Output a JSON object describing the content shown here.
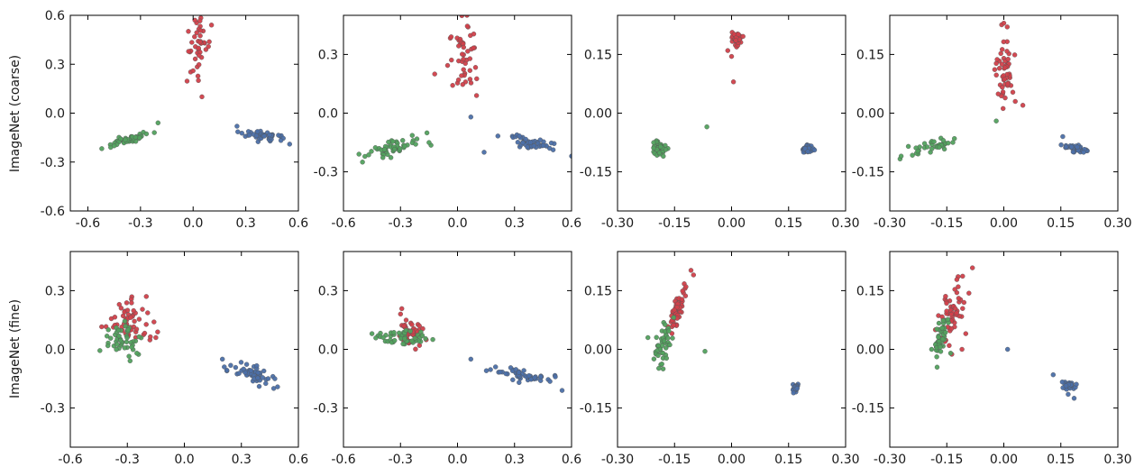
{
  "row_labels": [
    "ImageNet (coarse)",
    "ImageNet (fine)"
  ],
  "colors": {
    "red": "#d1404a",
    "green": "#52a15e",
    "blue": "#4b6fa8"
  },
  "chart_data": [
    {
      "type": "scatter",
      "row": 0,
      "col": 0,
      "xlim": [
        -0.7,
        0.6
      ],
      "ylim": [
        -0.6,
        0.6
      ],
      "xticks": [
        "-0.6",
        "-0.3",
        "0.0",
        "0.3",
        "0.6"
      ],
      "yticks": [
        "-0.6",
        "-0.3",
        "0.0",
        "0.3",
        "0.6"
      ],
      "clusters": [
        {
          "color": "red",
          "cx": 0.03,
          "cy": 0.44,
          "sx": 0.035,
          "sy": 0.09,
          "n": 40,
          "extra": [
            [
              0.0,
              0.26
            ],
            [
              0.03,
              0.2
            ],
            [
              0.05,
              0.1
            ],
            [
              0.01,
              0.57
            ]
          ]
        },
        {
          "color": "green",
          "cx": -0.36,
          "cy": -0.16,
          "sx": 0.05,
          "sy": 0.018,
          "rho": 0.75,
          "n": 45,
          "extra": [
            [
              -0.47,
              -0.21
            ],
            [
              -0.2,
              -0.06
            ],
            [
              -0.45,
              -0.2
            ]
          ]
        },
        {
          "color": "blue",
          "cx": 0.42,
          "cy": -0.14,
          "sx": 0.06,
          "sy": 0.015,
          "rho": -0.4,
          "n": 45,
          "extra": [
            [
              0.25,
              -0.08
            ],
            [
              0.55,
              -0.19
            ]
          ]
        }
      ]
    },
    {
      "type": "scatter",
      "row": 0,
      "col": 1,
      "xlim": [
        -0.6,
        0.6
      ],
      "ylim": [
        -0.5,
        0.5
      ],
      "xticks": [
        "-0.6",
        "-0.3",
        "0.0",
        "0.3",
        "0.6"
      ],
      "yticks": [
        "-0.3",
        "0.0",
        "0.3"
      ],
      "clusters": [
        {
          "color": "red",
          "cx": 0.03,
          "cy": 0.3,
          "sx": 0.04,
          "sy": 0.09,
          "n": 45,
          "extra": [
            [
              -0.12,
              0.2
            ],
            [
              0.1,
              0.09
            ],
            [
              0.05,
              0.5
            ]
          ]
        },
        {
          "color": "green",
          "cx": -0.34,
          "cy": -0.18,
          "sx": 0.07,
          "sy": 0.03,
          "rho": 0.7,
          "n": 50,
          "extra": [
            [
              -0.5,
              -0.25
            ],
            [
              -0.15,
              -0.15
            ]
          ]
        },
        {
          "color": "blue",
          "cx": 0.38,
          "cy": -0.15,
          "sx": 0.07,
          "sy": 0.02,
          "rho": -0.4,
          "n": 45,
          "extra": [
            [
              0.14,
              -0.2
            ],
            [
              0.07,
              -0.02
            ],
            [
              0.6,
              -0.22
            ]
          ]
        }
      ]
    },
    {
      "type": "scatter",
      "row": 0,
      "col": 2,
      "xlim": [
        -0.3,
        0.3
      ],
      "ylim": [
        -0.25,
        0.25
      ],
      "xticks": [
        "-0.30",
        "-0.15",
        "0.00",
        "0.15",
        "0.30"
      ],
      "yticks": [
        "-0.15",
        "0.00",
        "0.15"
      ],
      "clusters": [
        {
          "color": "red",
          "cx": 0.012,
          "cy": 0.19,
          "sx": 0.006,
          "sy": 0.008,
          "n": 35,
          "extra": [
            [
              -0.01,
              0.16
            ],
            [
              0.005,
              0.08
            ],
            [
              0.0,
              0.145
            ]
          ]
        },
        {
          "color": "green",
          "cx": -0.19,
          "cy": -0.09,
          "sx": 0.01,
          "sy": 0.008,
          "n": 40,
          "extra": [
            [
              -0.065,
              -0.035
            ],
            [
              -0.205,
              -0.075
            ]
          ]
        },
        {
          "color": "blue",
          "cx": 0.2,
          "cy": -0.09,
          "sx": 0.008,
          "sy": 0.006,
          "n": 40,
          "extra": []
        }
      ]
    },
    {
      "type": "scatter",
      "row": 0,
      "col": 3,
      "xlim": [
        -0.3,
        0.3
      ],
      "ylim": [
        -0.25,
        0.25
      ],
      "xticks": [
        "-0.30",
        "-0.15",
        "0.00",
        "0.15",
        "0.30"
      ],
      "yticks": [
        "-0.15",
        "0.00",
        "0.15"
      ],
      "clusters": [
        {
          "color": "red",
          "cx": 0.005,
          "cy": 0.12,
          "sx": 0.012,
          "sy": 0.05,
          "n": 50,
          "extra": [
            [
              0.05,
              0.02
            ],
            [
              0.03,
              0.03
            ],
            [
              0.0,
              0.23
            ]
          ]
        },
        {
          "color": "green",
          "cx": -0.19,
          "cy": -0.085,
          "sx": 0.025,
          "sy": 0.01,
          "rho": 0.6,
          "n": 35,
          "extra": [
            [
              -0.27,
              -0.11
            ],
            [
              -0.13,
              -0.065
            ],
            [
              -0.02,
              -0.02
            ]
          ]
        },
        {
          "color": "blue",
          "cx": 0.19,
          "cy": -0.09,
          "sx": 0.015,
          "sy": 0.005,
          "rho": -0.5,
          "n": 35,
          "extra": [
            [
              0.155,
              -0.06
            ],
            [
              0.21,
              -0.1
            ]
          ]
        }
      ]
    },
    {
      "type": "scatter",
      "row": 1,
      "col": 0,
      "xlim": [
        -0.6,
        0.6
      ],
      "ylim": [
        -0.5,
        0.5
      ],
      "xticks": [
        "-0.6",
        "-0.3",
        "0.0",
        "0.3",
        "0.6"
      ],
      "yticks": [
        "-0.3",
        "0.0",
        "0.3"
      ],
      "clusters": [
        {
          "color": "red",
          "cx": -0.28,
          "cy": 0.14,
          "sx": 0.06,
          "sy": 0.05,
          "n": 55,
          "extra": [
            [
              -0.2,
              0.27
            ],
            [
              -0.15,
              0.06
            ]
          ]
        },
        {
          "color": "green",
          "cx": -0.32,
          "cy": 0.05,
          "sx": 0.05,
          "sy": 0.04,
          "n": 45,
          "extra": [
            [
              -0.4,
              0.1
            ],
            [
              -0.25,
              -0.02
            ]
          ]
        },
        {
          "color": "blue",
          "cx": 0.37,
          "cy": -0.13,
          "sx": 0.05,
          "sy": 0.025,
          "rho": -0.6,
          "n": 55,
          "extra": [
            [
              0.2,
              -0.05
            ],
            [
              0.21,
              -0.09
            ],
            [
              0.47,
              -0.2
            ]
          ]
        }
      ]
    },
    {
      "type": "scatter",
      "row": 1,
      "col": 1,
      "xlim": [
        -0.6,
        0.6
      ],
      "ylim": [
        -0.5,
        0.5
      ],
      "xticks": [
        "-0.6",
        "-0.3",
        "0.0",
        "0.3",
        "0.6"
      ],
      "yticks": [
        "-0.3",
        "0.0",
        "0.3"
      ],
      "clusters": [
        {
          "color": "red",
          "cx": -0.25,
          "cy": 0.09,
          "sx": 0.035,
          "sy": 0.035,
          "n": 55,
          "extra": [
            [
              -0.3,
              0.18
            ],
            [
              -0.2,
              0.02
            ]
          ]
        },
        {
          "color": "green",
          "cx": -0.3,
          "cy": 0.06,
          "sx": 0.07,
          "sy": 0.02,
          "n": 45,
          "extra": [
            [
              -0.45,
              0.08
            ],
            [
              -0.13,
              0.05
            ]
          ]
        },
        {
          "color": "blue",
          "cx": 0.35,
          "cy": -0.13,
          "sx": 0.07,
          "sy": 0.02,
          "rho": -0.6,
          "n": 50,
          "extra": [
            [
              0.07,
              -0.05
            ],
            [
              0.55,
              -0.21
            ],
            [
              0.2,
              -0.09
            ]
          ]
        }
      ]
    },
    {
      "type": "scatter",
      "row": 1,
      "col": 2,
      "xlim": [
        -0.3,
        0.3
      ],
      "ylim": [
        -0.25,
        0.25
      ],
      "xticks": [
        "-0.30",
        "-0.15",
        "0.00",
        "0.15",
        "0.30"
      ],
      "yticks": [
        "-0.15",
        "0.00",
        "0.15"
      ],
      "clusters": [
        {
          "color": "red",
          "cx": -0.14,
          "cy": 0.11,
          "sx": 0.012,
          "sy": 0.03,
          "rho": 0.85,
          "n": 55,
          "extra": [
            [
              -0.1,
              0.19
            ],
            [
              -0.12,
              0.16
            ]
          ]
        },
        {
          "color": "green",
          "cx": -0.18,
          "cy": 0.02,
          "sx": 0.012,
          "sy": 0.025,
          "rho": 0.6,
          "n": 45,
          "extra": [
            [
              -0.22,
              0.03
            ],
            [
              -0.18,
              -0.05
            ],
            [
              -0.07,
              -0.005
            ]
          ]
        },
        {
          "color": "blue",
          "cx": 0.168,
          "cy": -0.1,
          "sx": 0.004,
          "sy": 0.006,
          "n": 30,
          "extra": []
        }
      ]
    },
    {
      "type": "scatter",
      "row": 1,
      "col": 3,
      "xlim": [
        -0.3,
        0.3
      ],
      "ylim": [
        -0.25,
        0.25
      ],
      "xticks": [
        "-0.30",
        "-0.15",
        "0.00",
        "0.15",
        "0.30"
      ],
      "yticks": [
        "-0.15",
        "0.00",
        "0.15"
      ],
      "clusters": [
        {
          "color": "red",
          "cx": -0.14,
          "cy": 0.09,
          "sx": 0.018,
          "sy": 0.035,
          "rho": 0.5,
          "n": 55,
          "extra": [
            [
              -0.1,
              0.04
            ],
            [
              -0.11,
              0.0
            ],
            [
              -0.18,
              0.05
            ],
            [
              -0.12,
              0.16
            ]
          ]
        },
        {
          "color": "green",
          "cx": -0.165,
          "cy": 0.03,
          "sx": 0.01,
          "sy": 0.025,
          "rho": 0.6,
          "n": 45,
          "extra": [
            [
              -0.19,
              0.0
            ],
            [
              -0.14,
              -0.01
            ]
          ]
        },
        {
          "color": "blue",
          "cx": 0.17,
          "cy": -0.095,
          "sx": 0.01,
          "sy": 0.006,
          "n": 25,
          "extra": [
            [
              0.13,
              -0.065
            ],
            [
              0.185,
              -0.125
            ],
            [
              0.01,
              0.0
            ]
          ]
        }
      ]
    }
  ]
}
